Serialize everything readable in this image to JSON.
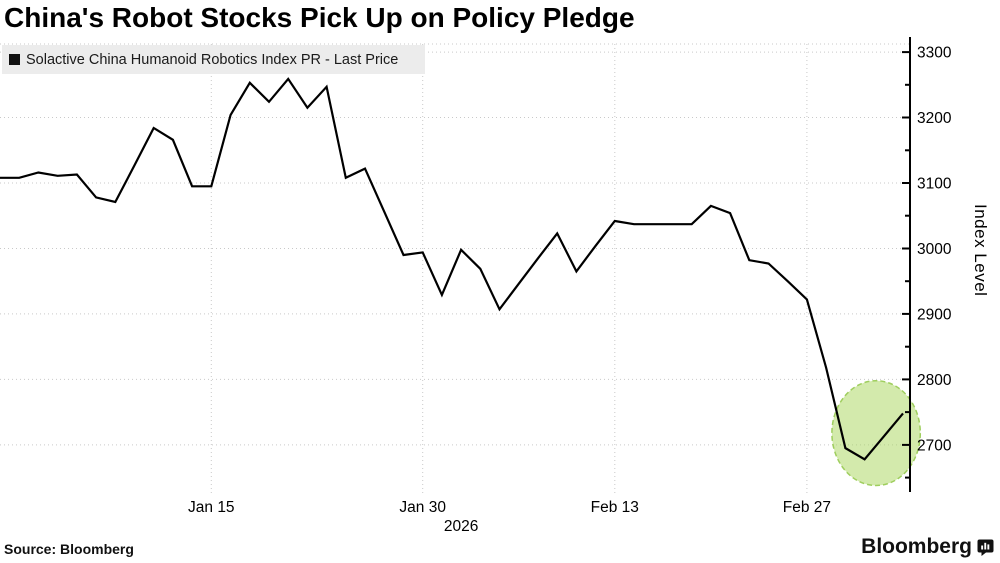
{
  "header": {
    "title": "China's Robot Stocks Pick Up on Policy Pledge"
  },
  "legend": {
    "label": "Solactive China Humanoid Robotics Index PR - Last Price",
    "swatch_color": "#111111"
  },
  "footer": {
    "source": "Source: Bloomberg",
    "brand": "Bloomberg"
  },
  "colors": {
    "line": "#000000",
    "grid": "#c9c9c9",
    "legend_bg": "#ececec",
    "highlight_fill": "#cbe59c",
    "highlight_border": "#9fce5e"
  },
  "chart_data": {
    "type": "line",
    "title": "China's Robot Stocks Pick Up on Policy Pledge",
    "series_name": "Solactive China Humanoid Robotics Index PR - Last Price",
    "ylabel": "Index Level",
    "x_unit": "daily trading sessions, Jan-Mar 2026",
    "grid": true,
    "legend_position": "top-left",
    "values": [
      3108,
      3108,
      3116,
      3111,
      3113,
      3078,
      3071,
      3127,
      3184,
      3166,
      3095,
      3095,
      3204,
      3253,
      3224,
      3259,
      3215,
      3247,
      3108,
      3122,
      3056,
      2990,
      2994,
      2929,
      2998,
      2969,
      2907,
      2946,
      2985,
      3023,
      2965,
      3004,
      3042,
      3037,
      3037,
      3037,
      3037,
      3065,
      3054,
      2982,
      2977,
      2950,
      2922,
      2818,
      2695,
      2678,
      2713,
      2748
    ],
    "yticks": [
      2700,
      2800,
      2900,
      3000,
      3100,
      3200,
      3300
    ],
    "yticks_minor": [
      2650,
      2750,
      2850,
      2950,
      3050,
      3150,
      3250
    ],
    "ylim": [
      2628,
      3323
    ],
    "xticks": [
      {
        "label": "Jan 15",
        "index": 11
      },
      {
        "label": "Jan 30",
        "index": 22
      },
      {
        "label": "Feb 13",
        "index": 32
      },
      {
        "label": "Feb 27",
        "index": 42
      }
    ],
    "year_label": {
      "label": "2026",
      "index": 24
    },
    "annotations": [
      {
        "type": "ellipse",
        "center_index": 45.6,
        "center_value": 2718,
        "radius_index": 2.3,
        "radius_value": 80
      }
    ]
  }
}
